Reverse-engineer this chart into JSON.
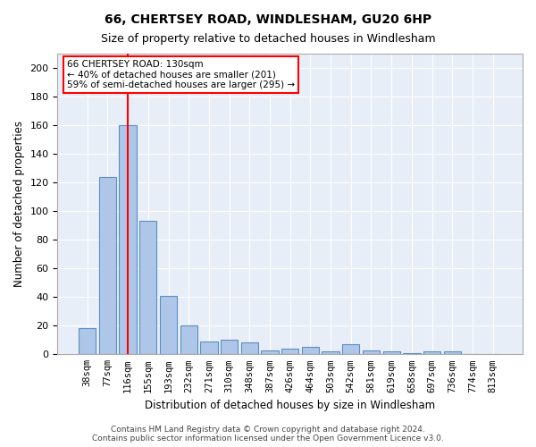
{
  "title1": "66, CHERTSEY ROAD, WINDLESHAM, GU20 6HP",
  "title2": "Size of property relative to detached houses in Windlesham",
  "xlabel": "Distribution of detached houses by size in Windlesham",
  "ylabel": "Number of detached properties",
  "categories": [
    "38sqm",
    "77sqm",
    "116sqm",
    "155sqm",
    "193sqm",
    "232sqm",
    "271sqm",
    "310sqm",
    "348sqm",
    "387sqm",
    "426sqm",
    "464sqm",
    "503sqm",
    "542sqm",
    "581sqm",
    "619sqm",
    "658sqm",
    "697sqm",
    "736sqm",
    "774sqm",
    "813sqm"
  ],
  "values": [
    18,
    124,
    160,
    93,
    41,
    20,
    9,
    10,
    8,
    3,
    4,
    5,
    2,
    7,
    3,
    2,
    1,
    2,
    2,
    0,
    0
  ],
  "bar_color": "#aec6e8",
  "bar_edge_color": "#5a8fc2",
  "bg_color": "#e8eef8",
  "grid_color": "#ffffff",
  "red_line_x": 2.0,
  "annotation_title": "66 CHERTSEY ROAD: 130sqm",
  "annotation_line1": "← 40% of detached houses are smaller (201)",
  "annotation_line2": "59% of semi-detached houses are larger (295) →",
  "ylim": [
    0,
    210
  ],
  "yticks": [
    0,
    20,
    40,
    60,
    80,
    100,
    120,
    140,
    160,
    180,
    200
  ],
  "footer1": "Contains HM Land Registry data © Crown copyright and database right 2024.",
  "footer2": "Contains public sector information licensed under the Open Government Licence v3.0."
}
